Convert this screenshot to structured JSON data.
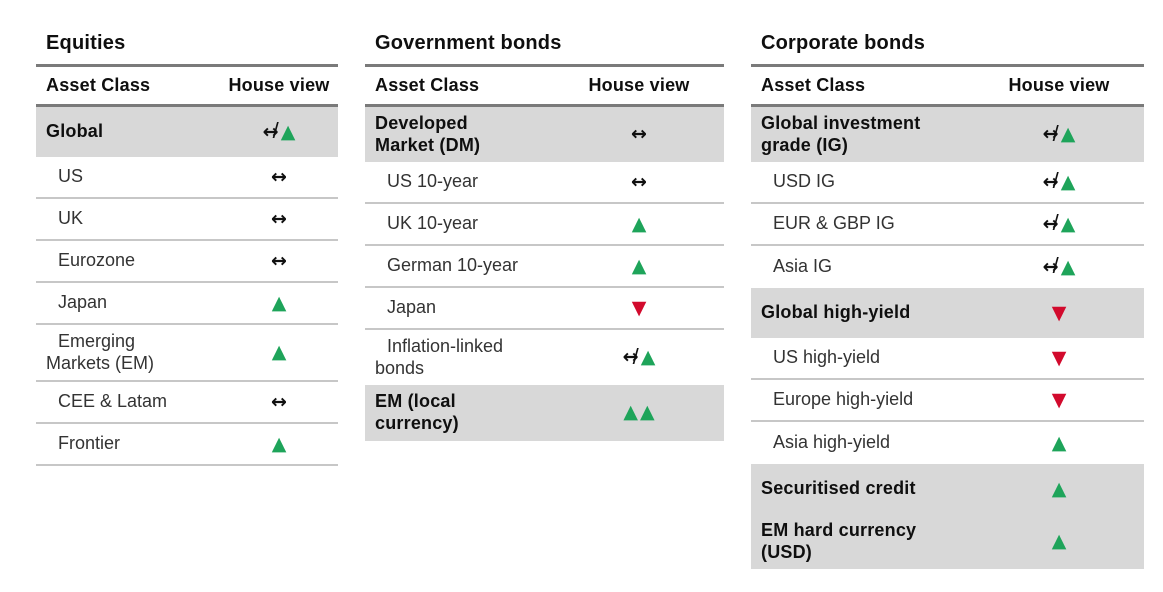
{
  "colors": {
    "green": "#1ea45a",
    "red": "#d20a2d",
    "shaded": "#d8d8d8",
    "rule_dark": "#7a7a7a",
    "rule_light": "#c7c7c7",
    "text": "#333333",
    "text_bold": "#0f0f0f"
  },
  "symbols": {
    "neutral": "↔",
    "slash": "/",
    "up": "▲",
    "down": "▼"
  },
  "tables": [
    {
      "name": "equities",
      "title": "Equities",
      "columns": {
        "asset": "Asset Class",
        "view": "House view"
      },
      "rows": [
        {
          "label": "Global",
          "bold": true,
          "shaded": true,
          "view": "neutral-up"
        },
        {
          "label": "US",
          "view": "neutral"
        },
        {
          "label": "UK",
          "view": "neutral"
        },
        {
          "label": "Eurozone",
          "view": "neutral"
        },
        {
          "label": "Japan",
          "view": "up"
        },
        {
          "label": "Emerging\nMarkets (EM)",
          "view": "up"
        },
        {
          "label": "CEE & Latam",
          "view": "neutral"
        },
        {
          "label": "Frontier",
          "view": "up"
        }
      ]
    },
    {
      "name": "government-bonds",
      "title": "Government bonds",
      "columns": {
        "asset": "Asset Class",
        "view": "House view"
      },
      "rows": [
        {
          "label": "Developed\nMarket (DM)",
          "bold": true,
          "shaded": true,
          "view": "neutral"
        },
        {
          "label": "US 10-year",
          "view": "neutral"
        },
        {
          "label": "UK 10-year",
          "view": "up"
        },
        {
          "label": "German 10-year",
          "view": "up"
        },
        {
          "label": "Japan",
          "view": "down"
        },
        {
          "label": "Inflation-linked\nbonds",
          "view": "neutral-up"
        },
        {
          "label": "EM (local\ncurrency)",
          "bold": true,
          "shaded": true,
          "view": "double-up"
        }
      ]
    },
    {
      "name": "corporate-bonds",
      "title": "Corporate bonds",
      "columns": {
        "asset": "Asset Class",
        "view": "House view"
      },
      "rows": [
        {
          "label": "Global investment\ngrade (IG)",
          "bold": true,
          "shaded": true,
          "view": "neutral-up"
        },
        {
          "label": "USD IG",
          "view": "neutral-up"
        },
        {
          "label": "EUR & GBP IG",
          "view": "neutral-up"
        },
        {
          "label": "Asia IG",
          "view": "neutral-up"
        },
        {
          "label": "Global high-yield",
          "bold": true,
          "shaded": true,
          "view": "down"
        },
        {
          "label": "US high-yield",
          "view": "down"
        },
        {
          "label": "Europe high-yield",
          "view": "down"
        },
        {
          "label": "Asia high-yield",
          "view": "up"
        },
        {
          "label": "Securitised credit",
          "bold": true,
          "shaded": true,
          "view": "up"
        },
        {
          "label": "EM hard currency\n(USD)",
          "bold": true,
          "shaded": true,
          "view": "up"
        }
      ]
    }
  ]
}
